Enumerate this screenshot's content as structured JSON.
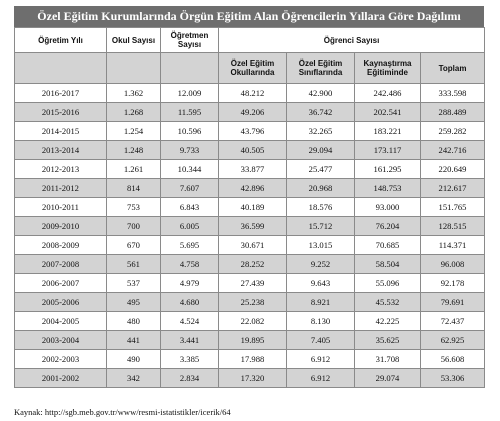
{
  "title": "Özel Eğitim Kurumlarında Örgün Eğitim Alan Öğrencilerin Yıllara Göre Dağılımı",
  "headers": {
    "year": "Öğretim Yılı",
    "schools": "Okul Sayısı",
    "teachers": "Öğretmen Sayısı",
    "students": "Öğrenci Sayısı",
    "sub": [
      "Özel Eğitim Okullarında",
      "Özel Eğitim Sınıflarında",
      "Kaynaştırma Eğitiminde",
      "Toplam"
    ]
  },
  "rows": [
    [
      "2016-2017",
      "1.362",
      "12.009",
      "48.212",
      "42.900",
      "242.486",
      "333.598"
    ],
    [
      "2015-2016",
      "1.268",
      "11.595",
      "49.206",
      "36.742",
      "202.541",
      "288.489"
    ],
    [
      "2014-2015",
      "1.254",
      "10.596",
      "43.796",
      "32.265",
      "183.221",
      "259.282"
    ],
    [
      "2013-2014",
      "1.248",
      "9.733",
      "40.505",
      "29.094",
      "173.117",
      "242.716"
    ],
    [
      "2012-2013",
      "1.261",
      "10.344",
      "33.877",
      "25.477",
      "161.295",
      "220.649"
    ],
    [
      "2011-2012",
      "814",
      "7.607",
      "42.896",
      "20.968",
      "148.753",
      "212.617"
    ],
    [
      "2010-2011",
      "753",
      "6.843",
      "40.189",
      "18.576",
      "93.000",
      "151.765"
    ],
    [
      "2009-2010",
      "700",
      "6.005",
      "36.599",
      "15.712",
      "76.204",
      "128.515"
    ],
    [
      "2008-2009",
      "670",
      "5.695",
      "30.671",
      "13.015",
      "70.685",
      "114.371"
    ],
    [
      "2007-2008",
      "561",
      "4.758",
      "28.252",
      "9.252",
      "58.504",
      "96.008"
    ],
    [
      "2006-2007",
      "537",
      "4.979",
      "27.439",
      "9.643",
      "55.096",
      "92.178"
    ],
    [
      "2005-2006",
      "495",
      "4.680",
      "25.238",
      "8.921",
      "45.532",
      "79.691"
    ],
    [
      "2004-2005",
      "480",
      "4.524",
      "22.082",
      "8.130",
      "42.225",
      "72.437"
    ],
    [
      "2003-2004",
      "441",
      "3.441",
      "19.895",
      "7.405",
      "35.625",
      "62.925"
    ],
    [
      "2002-2003",
      "490",
      "3.385",
      "17.988",
      "6.912",
      "31.708",
      "56.608"
    ],
    [
      "2001-2002",
      "342",
      "2.834",
      "17.320",
      "6.912",
      "29.074",
      "53.306"
    ]
  ],
  "source": "Kaynak: http://sgb.meb.gov.tr/www/resmi-istatistikler/icerik/64"
}
